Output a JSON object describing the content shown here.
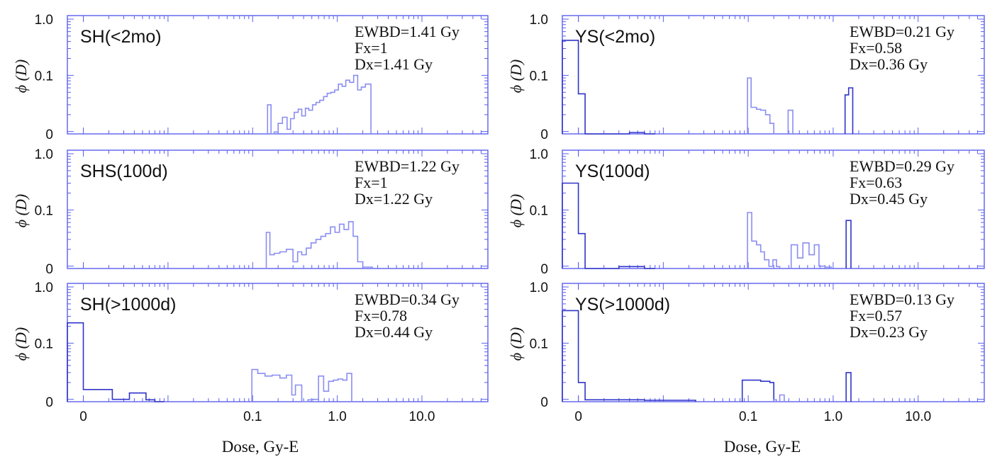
{
  "chart_data": {
    "type": "histogram-grid",
    "xlabel": "Dose, Gy-E",
    "ylabel": "ϕ (D)",
    "x_ticks": [
      "0",
      "0.1",
      "1.0",
      "10.0"
    ],
    "y_ticks": [
      "0",
      "0.1",
      "1.0"
    ],
    "panels": [
      {
        "title": "SH(<2mo)",
        "annotations": [
          "EWBD=1.41 Gy",
          "Fx=1",
          "Dx=1.41 Gy"
        ],
        "columns": [
          {
            "tone": "light",
            "bins": [
              [
                0.15,
                0.165,
                0.03
              ],
              [
                0.165,
                0.18,
                0.0
              ],
              [
                0.18,
                0.2,
                0.008
              ],
              [
                0.2,
                0.225,
                0.014
              ],
              [
                0.225,
                0.255,
                0.018
              ],
              [
                0.255,
                0.28,
                0.011
              ],
              [
                0.28,
                0.31,
                0.017
              ],
              [
                0.31,
                0.345,
                0.022
              ],
              [
                0.345,
                0.38,
                0.025
              ],
              [
                0.38,
                0.42,
                0.019
              ],
              [
                0.42,
                0.46,
                0.026
              ],
              [
                0.46,
                0.51,
                0.024
              ],
              [
                0.51,
                0.56,
                0.03
              ],
              [
                0.56,
                0.62,
                0.033
              ],
              [
                0.62,
                0.69,
                0.036
              ],
              [
                0.69,
                0.76,
                0.042
              ],
              [
                0.76,
                0.84,
                0.048
              ],
              [
                0.84,
                0.93,
                0.05
              ],
              [
                0.93,
                1.03,
                0.055
              ],
              [
                1.03,
                1.14,
                0.07
              ],
              [
                1.14,
                1.26,
                0.064
              ],
              [
                1.26,
                1.4,
                0.082
              ],
              [
                1.4,
                1.56,
                0.075
              ],
              [
                1.56,
                1.74,
                0.1
              ],
              [
                1.74,
                1.92,
                0.055
              ],
              [
                1.92,
                2.15,
                0.062
              ],
              [
                2.15,
                2.5,
                0.07
              ]
            ]
          }
        ]
      },
      {
        "title": "YS(<2mo)",
        "annotations": [
          "EWBD=0.21 Gy",
          "Fx=0.58",
          "Dx=0.36 Gy"
        ],
        "columns": [
          {
            "tone": "dark",
            "bins": [
              [
                -0.001,
                0.0,
                0.42
              ],
              [
                0.0,
                0.0012,
                0.047
              ],
              [
                0.0012,
                0.004,
                0.0
              ],
              [
                0.004,
                0.006,
                0.006
              ],
              [
                0.006,
                0.008,
                0.0
              ]
            ]
          },
          {
            "tone": "light",
            "bins": [
              [
                0.098,
                0.108,
                0.09
              ],
              [
                0.108,
                0.125,
                0.027
              ],
              [
                0.125,
                0.14,
                0.025
              ],
              [
                0.14,
                0.16,
                0.024
              ],
              [
                0.16,
                0.18,
                0.02
              ],
              [
                0.18,
                0.2,
                0.014
              ]
            ]
          },
          {
            "tone": "light",
            "bins": [
              [
                0.295,
                0.335,
                0.024
              ]
            ]
          },
          {
            "tone": "dark",
            "bins": [
              [
                1.38,
                1.52,
                0.045
              ],
              [
                1.52,
                1.7,
                0.06
              ]
            ]
          }
        ]
      },
      {
        "title": "SHS(100d)",
        "annotations": [
          "EWBD=1.22 Gy",
          "Fx=1",
          "Dx=1.22 Gy"
        ],
        "columns": [
          {
            "tone": "light",
            "bins": [
              [
                0.145,
                0.16,
                0.04
              ],
              [
                0.16,
                0.18,
                0.016
              ],
              [
                0.18,
                0.21,
                0.017
              ],
              [
                0.21,
                0.25,
                0.018
              ],
              [
                0.25,
                0.3,
                0.02
              ],
              [
                0.3,
                0.34,
                0.012
              ],
              [
                0.34,
                0.38,
                0.018
              ],
              [
                0.38,
                0.43,
                0.016
              ],
              [
                0.43,
                0.49,
                0.021
              ],
              [
                0.49,
                0.56,
                0.026
              ],
              [
                0.56,
                0.64,
                0.03
              ],
              [
                0.64,
                0.73,
                0.034
              ],
              [
                0.73,
                0.83,
                0.038
              ],
              [
                0.83,
                0.94,
                0.05
              ],
              [
                0.94,
                1.06,
                0.04
              ],
              [
                1.06,
                1.2,
                0.056
              ],
              [
                1.2,
                1.36,
                0.045
              ],
              [
                1.36,
                1.54,
                0.062
              ],
              [
                1.54,
                1.74,
                0.034
              ],
              [
                1.74,
                2.0,
                0.012
              ],
              [
                2.0,
                2.6,
                0.006
              ]
            ]
          }
        ]
      },
      {
        "title": "YS(100d)",
        "annotations": [
          "EWBD=0.29 Gy",
          "Fx=0.63",
          "Dx=0.45 Gy"
        ],
        "columns": [
          {
            "tone": "dark",
            "bins": [
              [
                -0.001,
                0.0,
                0.3
              ],
              [
                0.0,
                0.0012,
                0.038
              ],
              [
                0.0012,
                0.003,
                0.0
              ],
              [
                0.003,
                0.006,
                0.008
              ],
              [
                0.006,
                0.008,
                0.0
              ]
            ]
          },
          {
            "tone": "light",
            "bins": [
              [
                0.098,
                0.11,
                0.09
              ],
              [
                0.11,
                0.125,
                0.028
              ],
              [
                0.125,
                0.14,
                0.024
              ],
              [
                0.14,
                0.155,
                0.018
              ],
              [
                0.155,
                0.175,
                0.013
              ],
              [
                0.175,
                0.195,
                0.009
              ],
              [
                0.195,
                0.215,
                0.013
              ],
              [
                0.215,
                0.235,
                0.008
              ]
            ]
          },
          {
            "tone": "light",
            "bins": [
              [
                0.32,
                0.38,
                0.024
              ],
              [
                0.38,
                0.44,
                0.014
              ],
              [
                0.44,
                0.52,
                0.026
              ],
              [
                0.52,
                0.6,
                0.016
              ],
              [
                0.6,
                0.68,
                0.024
              ],
              [
                0.68,
                0.8,
                0.01
              ],
              [
                0.8,
                0.95,
                0.006
              ]
            ]
          },
          {
            "tone": "dark",
            "bins": [
              [
                1.42,
                1.62,
                0.065
              ]
            ]
          }
        ]
      },
      {
        "title": "SH(>1000d)",
        "annotations": [
          "EWBD=0.34 Gy",
          "Fx=0.78",
          "Dx=0.44 Gy"
        ],
        "columns": [
          {
            "tone": "dark",
            "bins": [
              [
                -0.001,
                0.0,
                0.23
              ],
              [
                0.0,
                0.001,
                0.026
              ],
              [
                0.001,
                0.0022,
                0.015
              ],
              [
                0.0022,
                0.0035,
                0.01
              ],
              [
                0.0035,
                0.0055,
                0.013
              ],
              [
                0.0055,
                0.007,
                0.008
              ],
              [
                0.007,
                0.009,
                0.0
              ]
            ]
          },
          {
            "tone": "light",
            "bins": [
              [
                0.098,
                0.115,
                0.034
              ],
              [
                0.115,
                0.14,
                0.029
              ],
              [
                0.14,
                0.17,
                0.026
              ],
              [
                0.17,
                0.21,
                0.027
              ],
              [
                0.21,
                0.25,
                0.024
              ],
              [
                0.25,
                0.29,
                0.027
              ],
              [
                0.29,
                0.32,
                0.012
              ],
              [
                0.32,
                0.38,
                0.018
              ],
              [
                0.38,
                0.45,
                0.0
              ],
              [
                0.45,
                0.52,
                0.008
              ],
              [
                0.52,
                0.6,
                0.01
              ],
              [
                0.6,
                0.69,
                0.026
              ],
              [
                0.69,
                0.79,
                0.014
              ],
              [
                0.79,
                0.9,
                0.021
              ],
              [
                0.9,
                1.02,
                0.022
              ],
              [
                1.02,
                1.16,
                0.023
              ],
              [
                1.16,
                1.3,
                0.022
              ],
              [
                1.3,
                1.48,
                0.029
              ]
            ]
          }
        ]
      },
      {
        "title": "YS(>1000d)",
        "annotations": [
          "EWBD=0.13 Gy",
          "Fx=0.57",
          "Dx=0.23 Gy"
        ],
        "columns": [
          {
            "tone": "dark",
            "bins": [
              [
                -0.001,
                0.0,
                0.38
              ],
              [
                0.0,
                0.0012,
                0.02
              ],
              [
                0.0012,
                0.006,
                0.008
              ],
              [
                0.006,
                0.024,
                0.006
              ]
            ]
          },
          {
            "tone": "dark",
            "bins": [
              [
                0.085,
                0.11,
                0.022
              ],
              [
                0.11,
                0.14,
                0.022
              ],
              [
                0.14,
                0.18,
                0.021
              ],
              [
                0.18,
                0.2,
                0.02
              ]
            ]
          },
          {
            "tone": "light",
            "bins": [
              [
                0.2,
                0.215,
                0.008
              ]
            ]
          },
          {
            "tone": "light",
            "bins": [
              [
                0.235,
                0.265,
                0.012
              ]
            ]
          },
          {
            "tone": "dark",
            "bins": [
              [
                1.42,
                1.62,
                0.03
              ]
            ]
          }
        ]
      }
    ],
    "colors": {
      "axis": "#5b5ff0",
      "dark": "#3034c8",
      "light": "#8a8df2",
      "grid": "#7b7ff2"
    }
  }
}
